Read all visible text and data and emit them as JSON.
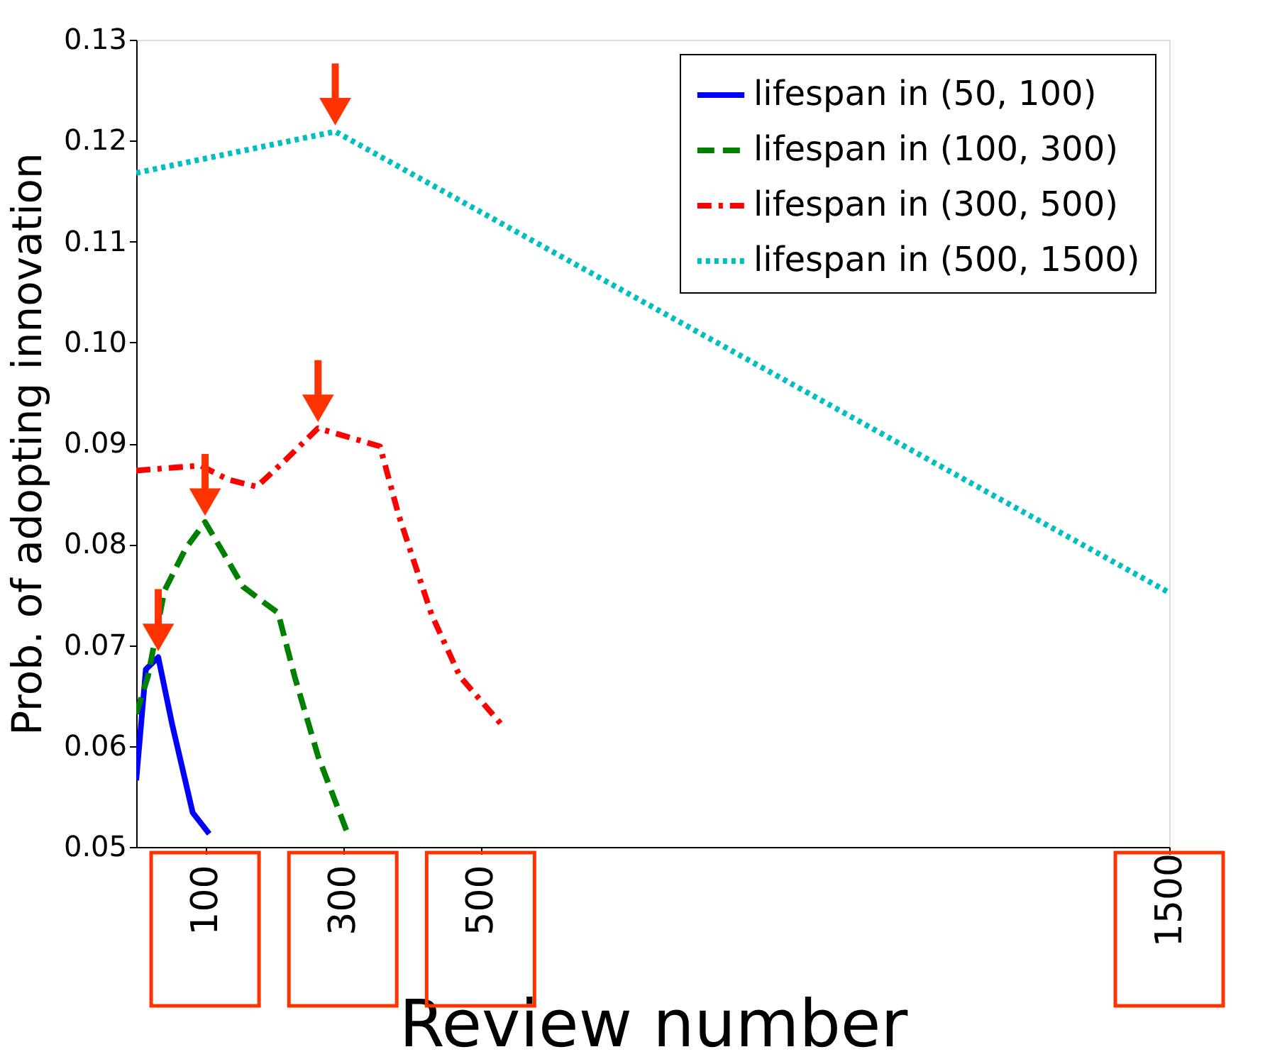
{
  "chart_data": {
    "type": "line",
    "xlabel": "Review number",
    "ylabel": "Prob. of adopting innovation",
    "xlim": [
      0,
      1500
    ],
    "xticks": [
      100,
      300,
      500,
      1500
    ],
    "ylim": [
      0.05,
      0.13
    ],
    "yticks": [
      0.05,
      0.06,
      0.07,
      0.08,
      0.09,
      {
        "value": 0.1,
        "label": "0.10"
      },
      0.11,
      0.12,
      0.13
    ],
    "grid": false,
    "legend": "top right",
    "marker": "none",
    "series": [
      {
        "name": "lifespan in (50, 100)",
        "color": "#0000ff",
        "line_style": "solid",
        "x": [
          0,
          14,
          32,
          52,
          82,
          106
        ],
        "values": [
          0.0566,
          0.0676,
          0.0688,
          0.0622,
          0.0534,
          0.0513
        ]
      },
      {
        "name": "lifespan in (100, 300)",
        "color": "#008000",
        "line_style": "dashed",
        "x": [
          0,
          17,
          41,
          72,
          100,
          127,
          155,
          182,
          206,
          230,
          264,
          306
        ],
        "values": [
          0.0632,
          0.0669,
          0.0754,
          0.0796,
          0.0822,
          0.0791,
          0.0758,
          0.0744,
          0.0732,
          0.0669,
          0.059,
          0.0515
        ]
      },
      {
        "name": "lifespan in (300, 500)",
        "color": "#ff0000",
        "line_style": "dashdot",
        "x": [
          0,
          93,
          134,
          175,
          216,
          264,
          354,
          381,
          429,
          470,
          532
        ],
        "values": [
          0.0873,
          0.0878,
          0.0864,
          0.0857,
          0.0883,
          0.0915,
          0.0897,
          0.0829,
          0.073,
          0.0669,
          0.062
        ]
      },
      {
        "name": "lifespan in (500, 1500)",
        "color": "#00bfbf",
        "line_style": "dotted",
        "x": [
          0,
          289,
          1500
        ],
        "values": [
          0.1168,
          0.1209,
          0.0752
        ]
      }
    ]
  }
}
